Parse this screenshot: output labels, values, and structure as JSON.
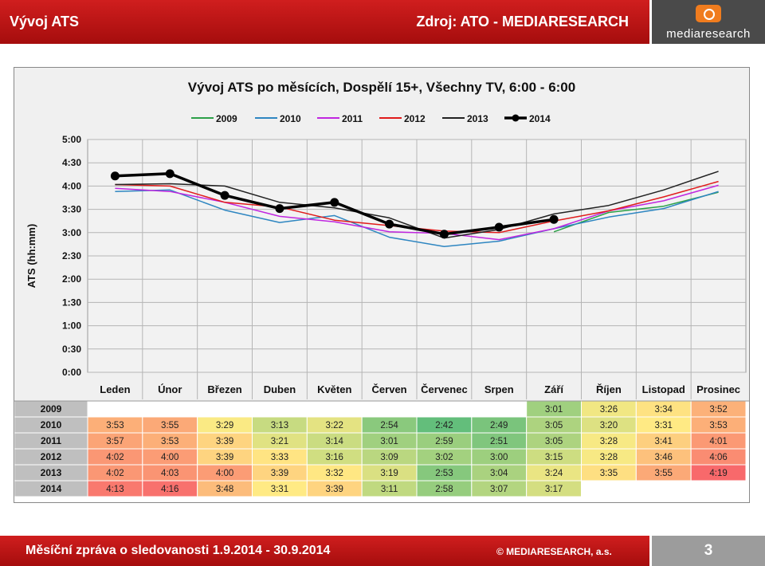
{
  "header": {
    "title": "Vývoj ATS",
    "source": "Zdroj: ATO - MEDIARESEARCH",
    "logo_text": "mediaresearch"
  },
  "footer": {
    "report": "Měsíční zpráva o sledovanosti 1.9.2014 - 30.9.2014",
    "copyright": "© MEDIARESEARCH, a.s.",
    "page": "3"
  },
  "chart_data": {
    "type": "line",
    "title": "Vývoj ATS po měsících, Dospělí 15+, Všechny TV, 6:00 - 6:00",
    "ylabel": "ATS (hh:mm)",
    "xlabel": "",
    "ylim": [
      "0:00",
      "5:00"
    ],
    "yticks": [
      "0:00",
      "0:30",
      "1:00",
      "1:30",
      "2:00",
      "2:30",
      "3:00",
      "3:30",
      "4:00",
      "4:30",
      "5:00"
    ],
    "categories": [
      "Leden",
      "Únor",
      "Březen",
      "Duben",
      "Květen",
      "Červen",
      "Červenec",
      "Srpen",
      "Září",
      "Říjen",
      "Listopad",
      "Prosinec"
    ],
    "legend_position": "top",
    "grid": true,
    "series": [
      {
        "name": "2009",
        "color": "#2ca048",
        "width": 1.5,
        "markers": false,
        "values": [
          null,
          null,
          null,
          null,
          null,
          null,
          null,
          null,
          "3:01",
          "3:26",
          "3:34",
          "3:52"
        ]
      },
      {
        "name": "2010",
        "color": "#2e86c1",
        "width": 1.5,
        "markers": false,
        "values": [
          "3:53",
          "3:55",
          "3:29",
          "3:13",
          "3:22",
          "2:54",
          "2:42",
          "2:49",
          "3:05",
          "3:20",
          "3:31",
          "3:53"
        ]
      },
      {
        "name": "2011",
        "color": "#c026e0",
        "width": 1.5,
        "markers": false,
        "values": [
          "3:57",
          "3:53",
          "3:39",
          "3:21",
          "3:14",
          "3:01",
          "2:59",
          "2:51",
          "3:05",
          "3:28",
          "3:41",
          "4:01"
        ]
      },
      {
        "name": "2012",
        "color": "#e01b1b",
        "width": 1.5,
        "markers": false,
        "values": [
          "4:02",
          "4:00",
          "3:39",
          "3:33",
          "3:16",
          "3:09",
          "3:02",
          "3:00",
          "3:15",
          "3:28",
          "3:46",
          "4:06"
        ]
      },
      {
        "name": "2013",
        "color": "#222222",
        "width": 1.5,
        "markers": false,
        "values": [
          "4:02",
          "4:03",
          "4:00",
          "3:39",
          "3:32",
          "3:19",
          "2:53",
          "3:04",
          "3:24",
          "3:35",
          "3:55",
          "4:19"
        ]
      },
      {
        "name": "2014",
        "color": "#000000",
        "width": 3.5,
        "markers": true,
        "values": [
          "4:13",
          "4:16",
          "3:48",
          "3:31",
          "3:39",
          "3:11",
          "2:58",
          "3:07",
          "3:17",
          null,
          null,
          null
        ]
      }
    ],
    "table": {
      "heat_low": "#63be7b",
      "heat_mid": "#ffeb84",
      "heat_high": "#f8696b"
    }
  }
}
